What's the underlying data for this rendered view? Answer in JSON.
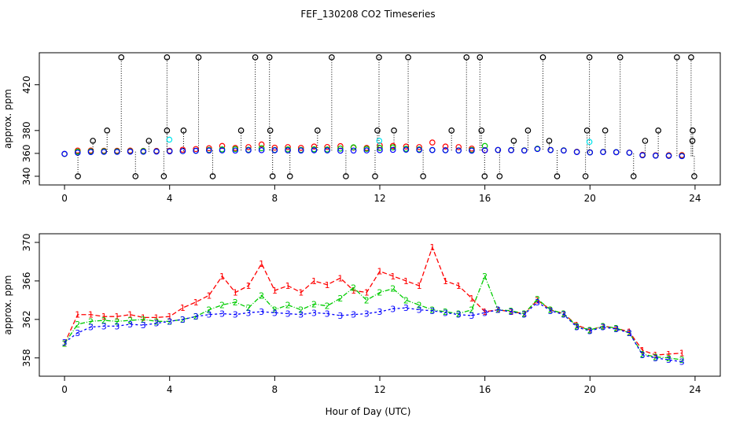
{
  "chart_data": [
    {
      "type": "scatter",
      "title": "FEF_130208  CO2 Timeseries",
      "y_label": "approx. ppm",
      "xlim": [
        -0.96,
        24.96
      ],
      "xticks": [
        0,
        4,
        8,
        12,
        16,
        20,
        24
      ],
      "ylim": [
        332.4,
        448
      ],
      "yticks": [
        340,
        360,
        380,
        420
      ],
      "x": [
        0,
        0.5,
        1,
        1.5,
        2,
        2.5,
        3,
        3.5,
        4,
        4.5,
        5,
        5.5,
        6,
        6.5,
        7,
        7.5,
        8,
        8.5,
        9,
        9.5,
        10,
        10.5,
        11,
        11.5,
        12,
        12.5,
        13,
        13.5,
        14,
        14.5,
        15,
        15.5,
        16,
        16.5,
        17,
        17.5,
        18,
        18.5,
        19,
        19.5,
        20,
        20.5,
        21,
        21.5,
        22,
        22.5,
        23,
        23.5
      ],
      "series": [
        {
          "color": "#ff0000",
          "values": [
            359.5,
            362.5,
            362.5,
            362.3,
            362.3,
            362.5,
            362.2,
            362.2,
            362.3,
            363.2,
            363.8,
            364.5,
            366.5,
            364.8,
            365.5,
            367.8,
            365.0,
            365.5,
            364.8,
            366.0,
            365.6,
            366.3,
            365.0,
            364.8,
            367.0,
            366.5,
            366.0,
            365.5,
            369.5,
            366.0,
            365.5,
            364.2,
            362.8,
            363.0,
            362.8,
            362.6,
            364.0,
            363.0,
            362.6,
            361.4,
            360.9,
            361.3,
            361.1,
            360.7,
            358.8,
            358.3,
            358.4,
            358.5
          ]
        },
        {
          "color": "#00cc00",
          "values": [
            359.5,
            361.5,
            361.8,
            361.9,
            361.8,
            361.9,
            362.0,
            361.8,
            361.8,
            362.0,
            362.3,
            363.0,
            363.5,
            363.8,
            363.2,
            364.5,
            363.0,
            363.5,
            363.0,
            363.6,
            363.4,
            364.2,
            365.3,
            364.0,
            364.8,
            365.2,
            364.0,
            363.5,
            363.0,
            362.8,
            362.6,
            363.0,
            366.5,
            363.0,
            362.9,
            362.6,
            364.1,
            363.0,
            362.6,
            361.3,
            360.9,
            361.3,
            361.1,
            360.6,
            358.4,
            358.1,
            358.0,
            357.8
          ]
        },
        {
          "color": "#0000ff",
          "values": [
            359.6,
            360.6,
            361.2,
            361.3,
            361.3,
            361.5,
            361.4,
            361.6,
            361.8,
            362.0,
            362.3,
            362.5,
            362.6,
            362.5,
            362.7,
            362.8,
            362.7,
            362.6,
            362.5,
            362.7,
            362.6,
            362.4,
            362.5,
            362.6,
            362.8,
            363.1,
            363.2,
            363.0,
            362.9,
            362.7,
            362.5,
            362.4,
            362.7,
            363.0,
            362.8,
            362.5,
            363.8,
            362.9,
            362.5,
            361.2,
            360.8,
            361.2,
            361.0,
            360.6,
            358.3,
            358.0,
            357.8,
            357.6
          ]
        },
        {
          "color": "#000000",
          "dotted": true,
          "x": [
            2.16,
            3.9,
            5.1,
            7.26,
            7.8,
            10.17,
            11.97,
            13.08,
            15.3,
            15.81,
            18.21,
            19.98,
            21.15,
            23.31,
            23.85,
            1.62,
            3.9,
            4.53,
            6.72,
            7.83,
            9.63,
            11.91,
            12.54,
            14.73,
            15.87,
            17.64,
            19.89,
            20.58,
            22.6,
            23.91,
            1.08,
            3.21,
            17.1,
            18.45,
            22.1,
            23.9,
            0.51,
            2.7,
            3.78,
            5.64,
            7.92,
            8.58,
            10.71,
            11.82,
            13.65,
            15.99,
            16.56,
            18.75,
            19.83,
            21.66,
            23.97
          ],
          "values": [
            444,
            444,
            444,
            444,
            444,
            444,
            444,
            444,
            444,
            444,
            444,
            444,
            444,
            444,
            444,
            380,
            380,
            380,
            380,
            380,
            380,
            380,
            380,
            380,
            380,
            380,
            380,
            380,
            380,
            380,
            371,
            371,
            371,
            371,
            371,
            371,
            340,
            340,
            340,
            340,
            340,
            340,
            340,
            340,
            340,
            340,
            340,
            340,
            340,
            340,
            340
          ]
        },
        {
          "color": "#00e5ee",
          "x": [
            3.99,
            11.98,
            19.98
          ],
          "values": [
            372,
            371,
            370
          ]
        }
      ]
    },
    {
      "type": "line",
      "x_label": "Hour of Day (UTC)",
      "y_label": "approx. ppm",
      "xlim": [
        -0.96,
        24.96
      ],
      "xticks": [
        0,
        4,
        8,
        12,
        16,
        20,
        24
      ],
      "ylim": [
        356.1,
        370.9
      ],
      "yticks": [
        358,
        362,
        366,
        370
      ],
      "x": [
        0,
        0.5,
        1,
        1.5,
        2,
        2.5,
        3,
        3.5,
        4,
        4.5,
        5,
        5.5,
        6,
        6.5,
        7,
        7.5,
        8,
        8.5,
        9,
        9.5,
        10,
        10.5,
        11,
        11.5,
        12,
        12.5,
        13,
        13.5,
        14,
        14.5,
        15,
        15.5,
        16,
        16.5,
        17,
        17.5,
        18,
        18.5,
        19,
        19.5,
        20,
        20.5,
        21,
        21.5,
        22,
        22.5,
        23,
        23.5
      ],
      "series": [
        {
          "marker": "1",
          "color": "#ff0000",
          "dash": "6 3",
          "values": [
            359.5,
            362.5,
            362.5,
            362.3,
            362.3,
            362.5,
            362.2,
            362.2,
            362.3,
            363.2,
            363.8,
            364.5,
            366.5,
            364.8,
            365.5,
            367.8,
            365.0,
            365.5,
            364.8,
            366.0,
            365.6,
            366.3,
            365.0,
            364.8,
            367.0,
            366.5,
            366.0,
            365.5,
            369.5,
            366.0,
            365.5,
            364.2,
            362.8,
            363.0,
            362.8,
            362.6,
            364.0,
            363.0,
            362.6,
            361.4,
            360.9,
            361.3,
            361.1,
            360.7,
            358.8,
            358.3,
            358.4,
            358.5
          ]
        },
        {
          "marker": "2",
          "color": "#00cc00",
          "dash": "6 2 1 2",
          "values": [
            359.5,
            361.5,
            361.8,
            361.9,
            361.8,
            361.9,
            362.0,
            361.8,
            361.8,
            362.0,
            362.3,
            363.0,
            363.5,
            363.8,
            363.2,
            364.5,
            363.0,
            363.5,
            363.0,
            363.6,
            363.4,
            364.2,
            365.3,
            364.0,
            364.8,
            365.2,
            364.0,
            363.5,
            363.0,
            362.8,
            362.6,
            363.0,
            366.5,
            363.0,
            362.9,
            362.6,
            364.1,
            363.0,
            362.6,
            361.3,
            360.9,
            361.3,
            361.1,
            360.6,
            358.4,
            358.1,
            358.0,
            357.8
          ]
        },
        {
          "marker": "3",
          "color": "#0000ff",
          "dash": "3 3",
          "values": [
            359.6,
            360.6,
            361.2,
            361.3,
            361.3,
            361.5,
            361.4,
            361.6,
            361.8,
            362.0,
            362.3,
            362.5,
            362.6,
            362.5,
            362.7,
            362.8,
            362.7,
            362.6,
            362.5,
            362.7,
            362.6,
            362.4,
            362.5,
            362.6,
            362.8,
            363.1,
            363.2,
            363.0,
            362.9,
            362.7,
            362.5,
            362.4,
            362.7,
            363.0,
            362.8,
            362.5,
            363.8,
            362.9,
            362.5,
            361.2,
            360.8,
            361.2,
            361.0,
            360.6,
            358.3,
            358.0,
            357.8,
            357.6
          ]
        }
      ]
    }
  ]
}
